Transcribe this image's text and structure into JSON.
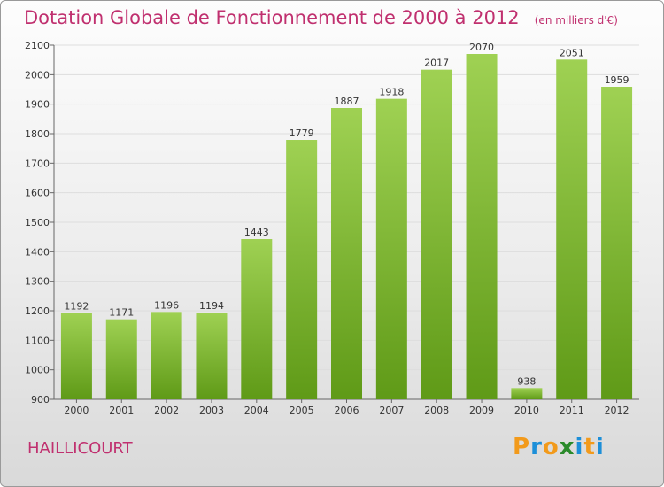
{
  "header": {
    "title": "Dotation Globale de Fonctionnement de 2000 à 2012",
    "unit": "(en milliers d'€)"
  },
  "footer": {
    "commune": "HAILLICOURT",
    "logo": {
      "letters": [
        "P",
        "r",
        "o",
        "x",
        "i",
        "t",
        "i"
      ]
    }
  },
  "colors": {
    "title": "#c0306f",
    "bar_light": "#9fd153",
    "bar_dark": "#5f9a17",
    "logo": [
      "#f29a1b",
      "#1d8fd8",
      "#f29a1b",
      "#2b8a2b",
      "#1d8fd8",
      "#f29a1b",
      "#1d8fd8"
    ]
  },
  "chart_data": {
    "type": "bar",
    "categories": [
      "2000",
      "2001",
      "2002",
      "2003",
      "2004",
      "2005",
      "2006",
      "2007",
      "2008",
      "2009",
      "2010",
      "2011",
      "2012"
    ],
    "values": [
      1192,
      1171,
      1196,
      1194,
      1443,
      1779,
      1887,
      1918,
      2017,
      2070,
      938,
      2051,
      1959
    ],
    "ylim": [
      900,
      2100
    ],
    "yticks": [
      900,
      1000,
      1100,
      1200,
      1300,
      1400,
      1500,
      1600,
      1700,
      1800,
      1900,
      2000,
      2100
    ],
    "grid": true,
    "legend": "none"
  }
}
